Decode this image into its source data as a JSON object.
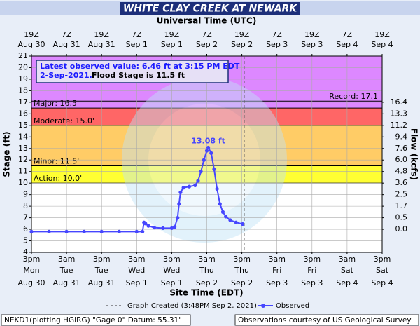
{
  "chart_data": {
    "type": "line",
    "title": "WHITE CLAY CREEK AT NEWARK",
    "x2_label": "Universal Time (UTC)",
    "x_label": "Site Time (EDT)",
    "y_label": "Stage (ft)",
    "y2_label": "Flow (kcfs)",
    "xlim": [
      "Aug 30 15:00",
      "Sep 4 15:00"
    ],
    "xticks": [
      {
        "value": "Aug 30 15:00",
        "label": [
          "3pm",
          "Mon",
          "Aug 30"
        ]
      },
      {
        "value": "Aug 31 03:00",
        "label": [
          "3am",
          "Tue",
          "Aug 31"
        ]
      },
      {
        "value": "Aug 31 15:00",
        "label": [
          "3pm",
          "Tue",
          "Aug 31"
        ]
      },
      {
        "value": "Sep 1 03:00",
        "label": [
          "3am",
          "Wed",
          "Sep 1"
        ]
      },
      {
        "value": "Sep 1 15:00",
        "label": [
          "3pm",
          "Wed",
          "Sep 1"
        ]
      },
      {
        "value": "Sep 2 03:00",
        "label": [
          "3am",
          "Thu",
          "Sep 2"
        ]
      },
      {
        "value": "Sep 2 15:00",
        "label": [
          "3pm",
          "Thu",
          "Sep 2"
        ]
      },
      {
        "value": "Sep 3 03:00",
        "label": [
          "3am",
          "Fri",
          "Sep 3"
        ]
      },
      {
        "value": "Sep 3 15:00",
        "label": [
          "3pm",
          "Fri",
          "Sep 3"
        ]
      },
      {
        "value": "Sep 4 03:00",
        "label": [
          "3am",
          "Sat",
          "Sep 4"
        ]
      },
      {
        "value": "Sep 4 15:00",
        "label": [
          "3pm",
          "Sat",
          "Sep 4"
        ]
      }
    ],
    "x2ticks": [
      {
        "value": "Aug 30 15:00",
        "label": [
          "19Z",
          "Aug 30"
        ]
      },
      {
        "value": "Aug 31 03:00",
        "label": [
          "7Z",
          "Aug 31"
        ]
      },
      {
        "value": "Aug 31 15:00",
        "label": [
          "19Z",
          "Aug 31"
        ]
      },
      {
        "value": "Sep 1 03:00",
        "label": [
          "7Z",
          "Sep 1"
        ]
      },
      {
        "value": "Sep 1 15:00",
        "label": [
          "19Z",
          "Sep 1"
        ]
      },
      {
        "value": "Sep 2 03:00",
        "label": [
          "7Z",
          "Sep 2"
        ]
      },
      {
        "value": "Sep 2 15:00",
        "label": [
          "19Z",
          "Sep 2"
        ]
      },
      {
        "value": "Sep 3 03:00",
        "label": [
          "7Z",
          "Sep 3"
        ]
      },
      {
        "value": "Sep 3 15:00",
        "label": [
          "19Z",
          "Sep 3"
        ]
      },
      {
        "value": "Sep 4 03:00",
        "label": [
          "7Z",
          "Sep 4"
        ]
      },
      {
        "value": "Sep 4 15:00",
        "label": [
          "19Z",
          "Sep 4"
        ]
      }
    ],
    "ylim": [
      4,
      21
    ],
    "yticks": [
      4,
      5,
      6,
      7,
      8,
      9,
      10,
      11,
      12,
      13,
      14,
      15,
      16,
      17,
      18,
      19,
      20,
      21
    ],
    "y2ticks": [
      {
        "value": 0,
        "label": "0.0",
        "stage": 6
      },
      {
        "value": 0.5,
        "label": "0.5",
        "stage": 7
      },
      {
        "value": 1.7,
        "label": "1.7",
        "stage": 8
      },
      {
        "value": 2.5,
        "label": "2.5",
        "stage": 9
      },
      {
        "value": 3.6,
        "label": "3.6",
        "stage": 10
      },
      {
        "value": 4.8,
        "label": "4.8",
        "stage": 11
      },
      {
        "value": 6,
        "label": "6.0",
        "stage": 12
      },
      {
        "value": 7.6,
        "label": "7.6",
        "stage": 13
      },
      {
        "value": 9.4,
        "label": "9.4",
        "stage": 14
      },
      {
        "value": 11.2,
        "label": "11.2",
        "stage": 15
      },
      {
        "value": 13.3,
        "label": "13.3",
        "stage": 16
      },
      {
        "value": 16.4,
        "label": "16.4",
        "stage": 17
      }
    ],
    "grid": true,
    "flood_categories": [
      {
        "label": "Action: 10.0'",
        "stage": 10,
        "color": "#ffff33"
      },
      {
        "label": "Minor: 11.5'",
        "stage": 11.5,
        "color": "#ffcc66"
      },
      {
        "label": "Moderate: 15.0'",
        "stage": 15,
        "color": "#ff6666"
      },
      {
        "label": "Major: 16.5'",
        "stage": 16.5,
        "color": "#dd88ff"
      }
    ],
    "record": {
      "label": "Record: 17.1'",
      "stage": 17.1
    },
    "x": [
      "Aug 30 15:00",
      "Aug 30 21:00",
      "Aug 31 03:00",
      "Aug 31 09:00",
      "Aug 31 15:00",
      "Aug 31 21:00",
      "Sep 1 03:00",
      "Sep 1 05:00",
      "Sep 1 05:30",
      "Sep 1 06:00",
      "Sep 1 07:00",
      "Sep 1 09:00",
      "Sep 1 12:00",
      "Sep 1 15:00",
      "Sep 1 16:00",
      "Sep 1 17:00",
      "Sep 1 17:30",
      "Sep 1 18:00",
      "Sep 1 19:00",
      "Sep 1 21:00",
      "Sep 1 23:00",
      "Sep 2 00:00",
      "Sep 2 01:00",
      "Sep 2 02:00",
      "Sep 2 03:00",
      "Sep 2 03:30",
      "Sep 2 04:30",
      "Sep 2 05:30",
      "Sep 2 06:30",
      "Sep 2 07:30",
      "Sep 2 08:30",
      "Sep 2 09:30",
      "Sep 2 11:00",
      "Sep 2 13:00",
      "Sep 2 15:15"
    ],
    "series": [
      {
        "name": "Observed",
        "color": "#4646ff",
        "values": [
          5.8,
          5.8,
          5.8,
          5.8,
          5.8,
          5.8,
          5.8,
          5.8,
          6.6,
          6.5,
          6.3,
          6.15,
          6.1,
          6.1,
          6.2,
          7.0,
          8.2,
          9.2,
          9.6,
          9.7,
          9.8,
          10.2,
          11.0,
          12.0,
          12.8,
          13.08,
          12.6,
          11.2,
          9.5,
          8.2,
          7.5,
          7.1,
          6.8,
          6.6,
          6.46
        ]
      }
    ],
    "peak_annotation": {
      "x": "Sep 2 03:30",
      "y": 13.08,
      "label": "13.08 ft"
    },
    "info": {
      "line1": "Latest observed value: 6.46 ft at 3:15 PM EDT",
      "line2_date": "2-Sep-2021.",
      "line2_flood": "Flood Stage is 11.5 ft"
    },
    "graph_created": {
      "x": "Sep 2 15:48",
      "label": "Graph Created (3:48PM Sep 2, 2021)"
    },
    "footer_left": "NEKD1(plotting HGIRG) \"Gage 0\" Datum: 55.31'",
    "footer_right": "Observations courtesy of US Geological Survey"
  }
}
